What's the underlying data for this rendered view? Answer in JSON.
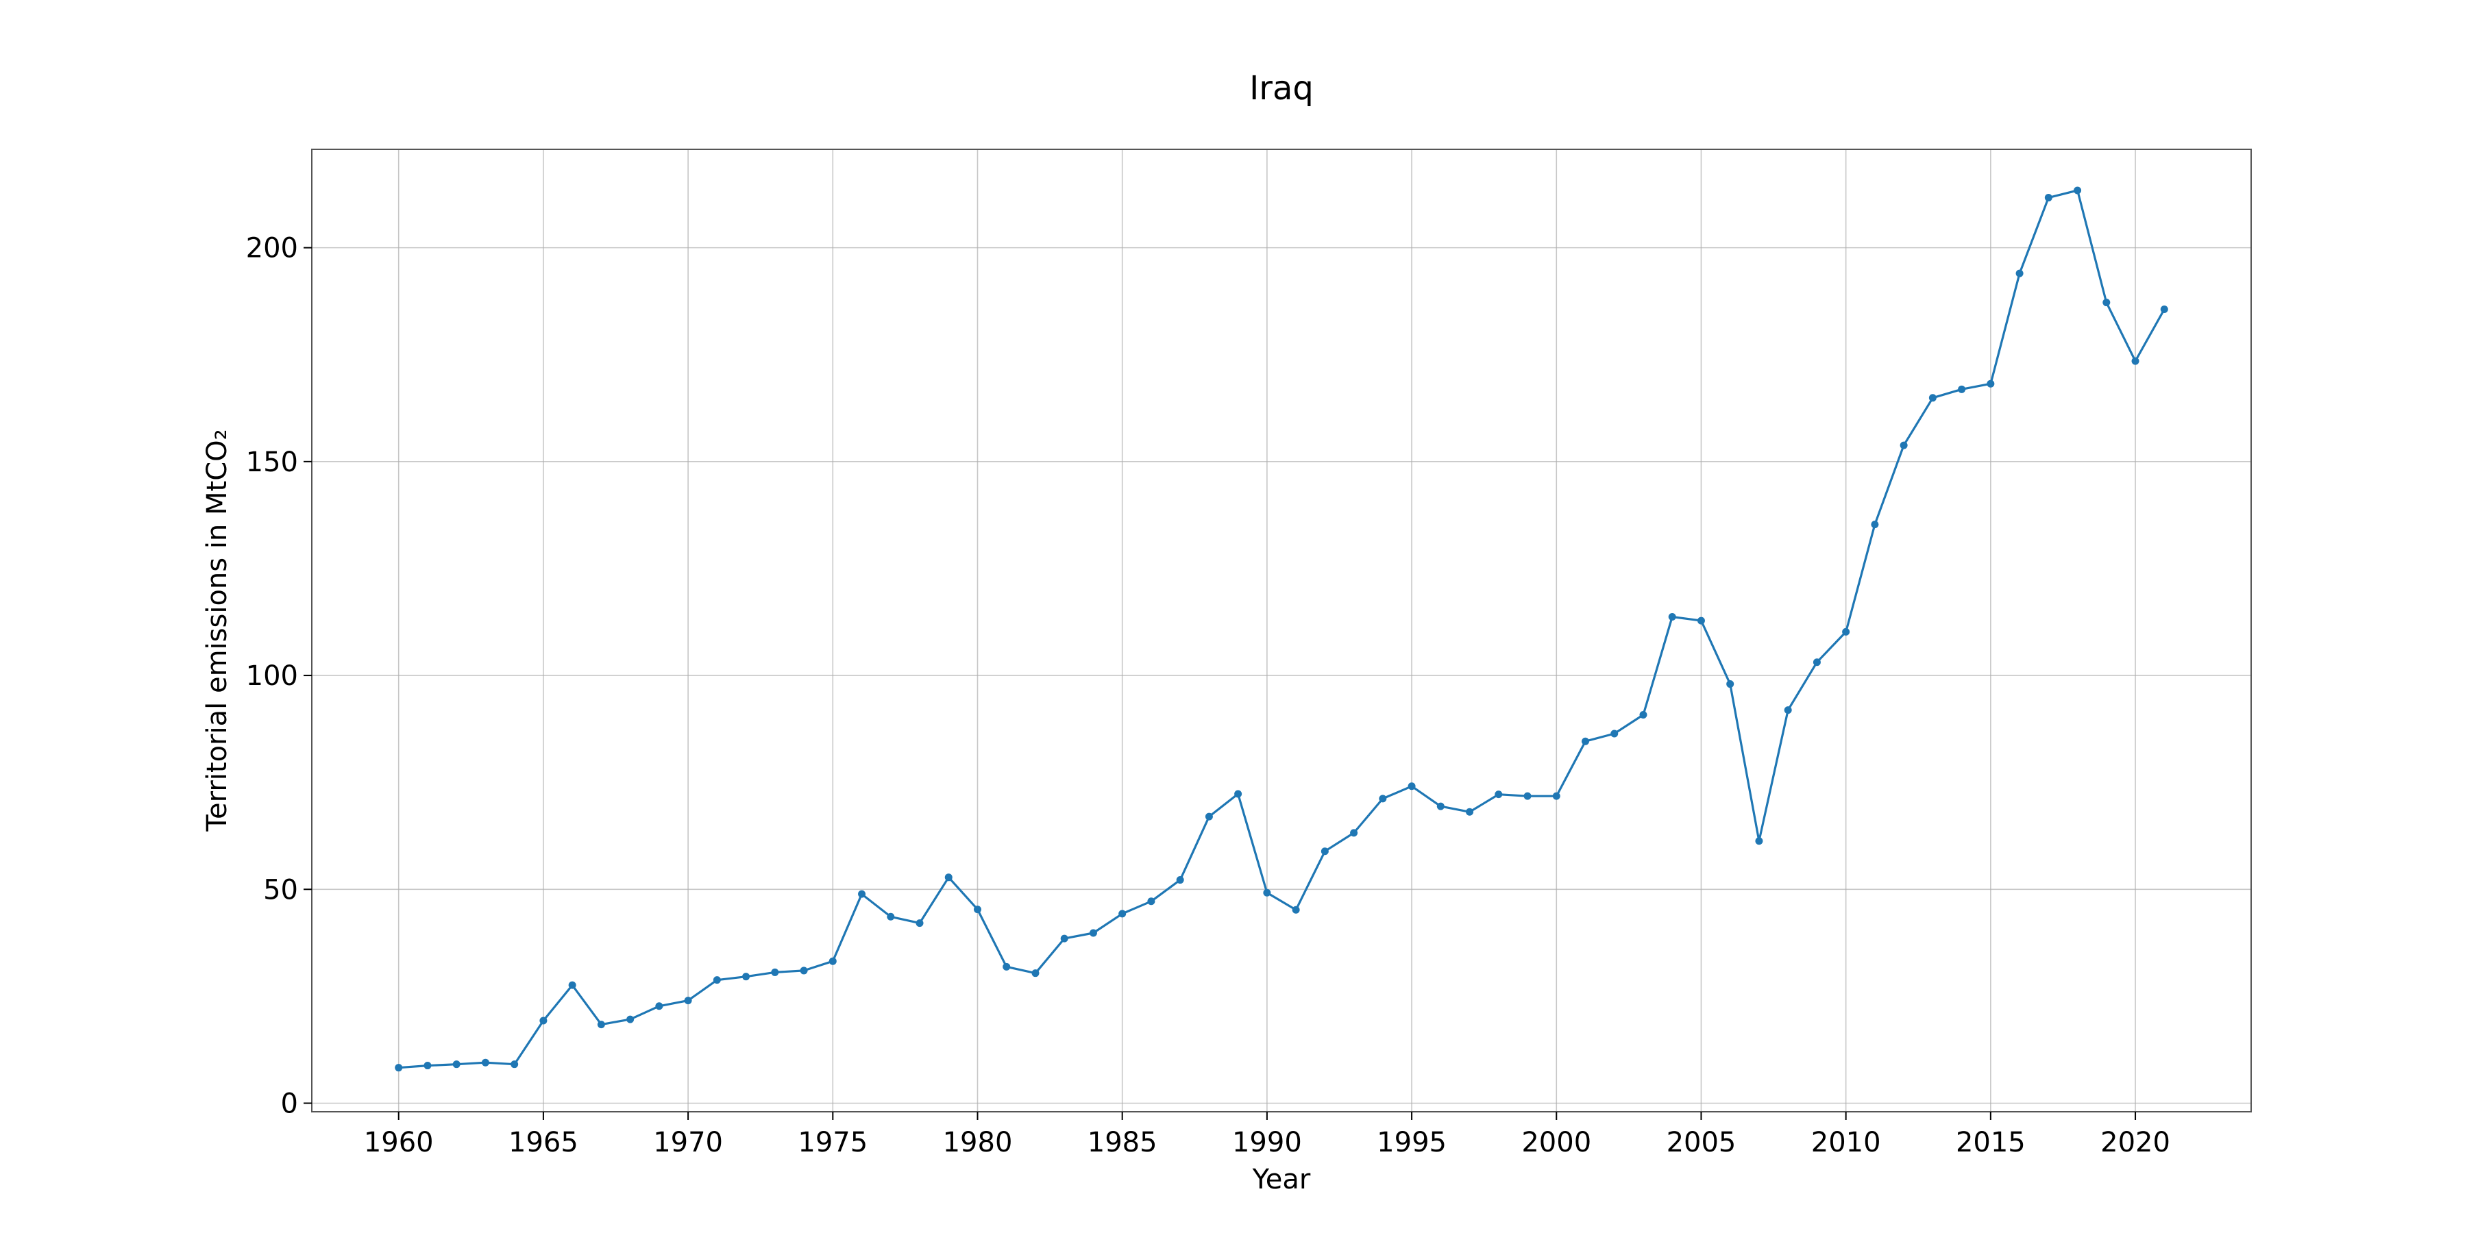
{
  "chart_data": {
    "type": "line",
    "title": "Iraq",
    "xlabel": "Year",
    "ylabel": "Territorial emissions in MtCO₂",
    "xlim": [
      1957,
      2024
    ],
    "ylim": [
      -2,
      223
    ],
    "xticks": [
      1960,
      1965,
      1970,
      1975,
      1980,
      1985,
      1990,
      1995,
      2000,
      2005,
      2010,
      2015,
      2020
    ],
    "yticks": [
      0,
      50,
      100,
      150,
      200
    ],
    "grid": true,
    "line_color": "#1f77b4",
    "marker": "circle",
    "series": [
      {
        "x": [
          1960,
          1961,
          1962,
          1963,
          1964,
          1965,
          1966,
          1967,
          1968,
          1969,
          1970,
          1971,
          1972,
          1973,
          1974,
          1975,
          1976,
          1977,
          1978,
          1979,
          1980,
          1981,
          1982,
          1983,
          1984,
          1985,
          1986,
          1987,
          1988,
          1989,
          1990,
          1991,
          1992,
          1993,
          1994,
          1995,
          1996,
          1997,
          1998,
          1999,
          2000,
          2001,
          2002,
          2003,
          2004,
          2005,
          2006,
          2007,
          2008,
          2009,
          2010,
          2011,
          2012,
          2013,
          2014,
          2015,
          2016,
          2017,
          2018,
          2019,
          2020,
          2021
        ],
        "y": [
          8.3,
          8.8,
          9.1,
          9.5,
          9.1,
          19.3,
          27.6,
          18.4,
          19.6,
          22.7,
          24.0,
          28.8,
          29.6,
          30.6,
          31.0,
          33.2,
          48.9,
          43.6,
          42.1,
          52.8,
          45.3,
          31.9,
          30.4,
          38.5,
          39.8,
          44.3,
          47.2,
          52.2,
          67.0,
          72.3,
          49.2,
          45.2,
          58.9,
          63.2,
          71.2,
          74.1,
          69.4,
          68.1,
          72.2,
          71.8,
          71.8,
          84.6,
          86.4,
          90.8,
          113.7,
          112.8,
          98.0,
          61.3,
          91.9,
          103.1,
          110.2,
          135.3,
          153.8,
          164.9,
          166.9,
          168.2,
          194.0,
          211.7,
          213.4,
          187.2,
          173.5,
          185.6
        ]
      }
    ]
  }
}
